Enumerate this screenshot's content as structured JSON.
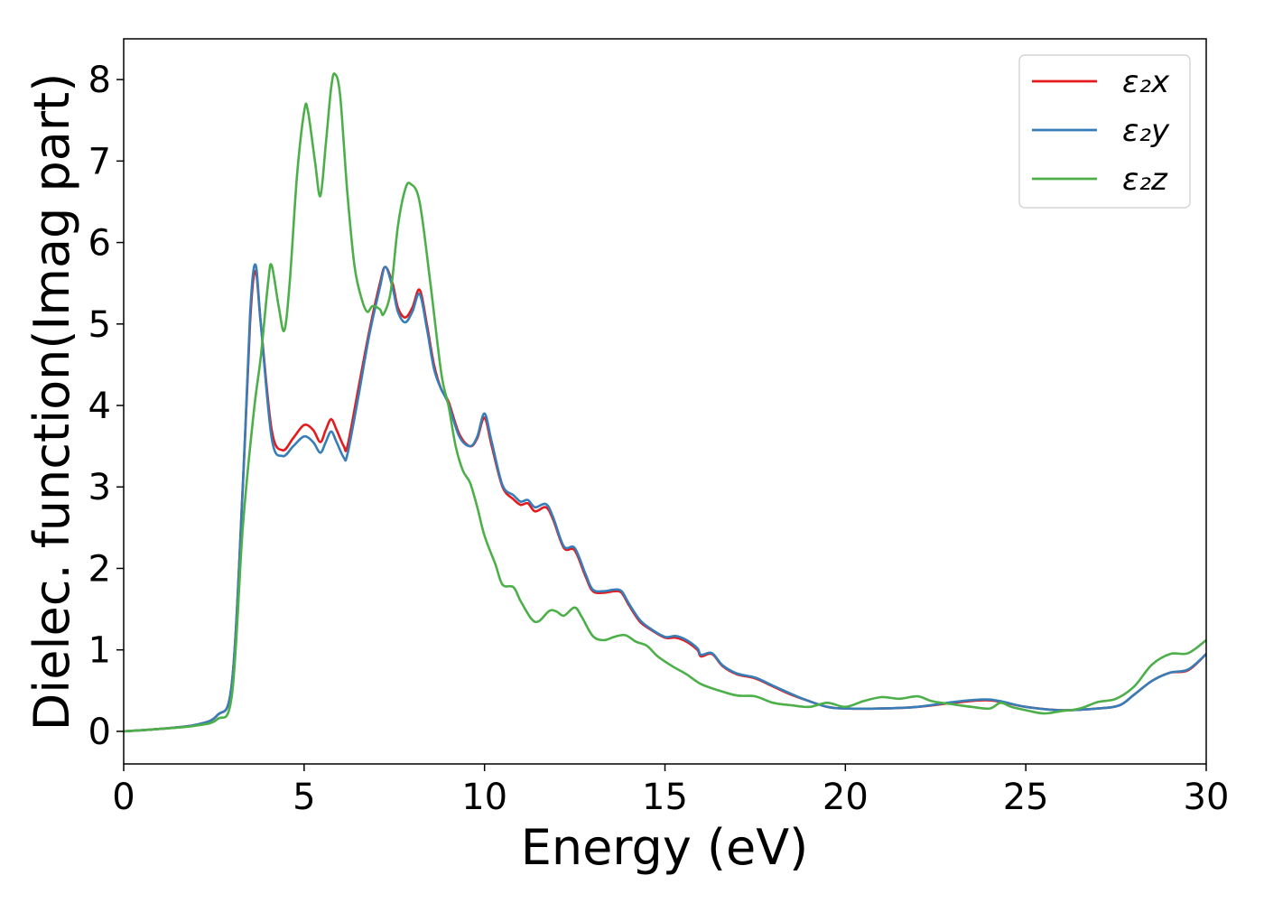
{
  "chart_data": {
    "type": "line",
    "xlabel": "Energy (eV)",
    "ylabel": "Dielec. function(Imag part)",
    "xlim": [
      0,
      30
    ],
    "ylim": [
      -0.4,
      8.5
    ],
    "xticks": [
      0,
      5,
      10,
      15,
      20,
      25,
      30
    ],
    "yticks": [
      0,
      1,
      2,
      3,
      4,
      5,
      6,
      7,
      8
    ],
    "xtick_labels": [
      "0",
      "5",
      "10",
      "15",
      "20",
      "25",
      "30"
    ],
    "ytick_labels": [
      "0",
      "1",
      "2",
      "3",
      "4",
      "5",
      "6",
      "7",
      "8"
    ],
    "grid": false,
    "legend_position": "top-right",
    "series": [
      {
        "name": "ε₂x",
        "color": "#e41a1c",
        "points": [
          [
            0,
            0
          ],
          [
            1,
            0.03
          ],
          [
            2,
            0.08
          ],
          [
            2.6,
            0.2
          ],
          [
            3,
            0.6
          ],
          [
            3.3,
            3.0
          ],
          [
            3.5,
            5.0
          ],
          [
            3.65,
            5.65
          ],
          [
            3.8,
            5.0
          ],
          [
            4.1,
            3.7
          ],
          [
            4.4,
            3.45
          ],
          [
            4.7,
            3.6
          ],
          [
            5.0,
            3.76
          ],
          [
            5.25,
            3.7
          ],
          [
            5.45,
            3.55
          ],
          [
            5.6,
            3.7
          ],
          [
            5.75,
            3.83
          ],
          [
            5.9,
            3.7
          ],
          [
            6.1,
            3.5
          ],
          [
            6.2,
            3.5
          ],
          [
            6.5,
            4.2
          ],
          [
            6.8,
            4.9
          ],
          [
            7.1,
            5.5
          ],
          [
            7.25,
            5.7
          ],
          [
            7.45,
            5.5
          ],
          [
            7.6,
            5.2
          ],
          [
            7.8,
            5.08
          ],
          [
            8.0,
            5.2
          ],
          [
            8.2,
            5.42
          ],
          [
            8.4,
            5.0
          ],
          [
            8.6,
            4.5
          ],
          [
            8.8,
            4.2
          ],
          [
            9.0,
            4.05
          ],
          [
            9.3,
            3.65
          ],
          [
            9.6,
            3.5
          ],
          [
            9.8,
            3.6
          ],
          [
            10.0,
            3.85
          ],
          [
            10.2,
            3.5
          ],
          [
            10.5,
            3.0
          ],
          [
            10.8,
            2.85
          ],
          [
            11.0,
            2.78
          ],
          [
            11.2,
            2.8
          ],
          [
            11.4,
            2.7
          ],
          [
            11.7,
            2.75
          ],
          [
            11.9,
            2.6
          ],
          [
            12.2,
            2.25
          ],
          [
            12.5,
            2.22
          ],
          [
            12.8,
            1.9
          ],
          [
            13.0,
            1.72
          ],
          [
            13.3,
            1.7
          ],
          [
            13.6,
            1.72
          ],
          [
            13.8,
            1.7
          ],
          [
            14.0,
            1.55
          ],
          [
            14.3,
            1.35
          ],
          [
            14.6,
            1.25
          ],
          [
            15.0,
            1.15
          ],
          [
            15.3,
            1.15
          ],
          [
            15.6,
            1.1
          ],
          [
            15.9,
            1.0
          ],
          [
            16.0,
            0.92
          ],
          [
            16.3,
            0.95
          ],
          [
            16.6,
            0.8
          ],
          [
            17.0,
            0.7
          ],
          [
            17.5,
            0.65
          ],
          [
            18.0,
            0.55
          ],
          [
            18.5,
            0.45
          ],
          [
            19.0,
            0.37
          ],
          [
            19.5,
            0.3
          ],
          [
            20.0,
            0.28
          ],
          [
            21.0,
            0.28
          ],
          [
            22.0,
            0.3
          ],
          [
            23.0,
            0.35
          ],
          [
            24.0,
            0.38
          ],
          [
            25.0,
            0.3
          ],
          [
            26.0,
            0.26
          ],
          [
            27.0,
            0.28
          ],
          [
            27.6,
            0.32
          ],
          [
            28.0,
            0.45
          ],
          [
            28.5,
            0.62
          ],
          [
            29.0,
            0.72
          ],
          [
            29.5,
            0.75
          ],
          [
            30.0,
            0.95
          ]
        ]
      },
      {
        "name": "ε₂y",
        "color": "#377eb8",
        "points": [
          [
            0,
            0
          ],
          [
            1,
            0.03
          ],
          [
            2,
            0.08
          ],
          [
            2.6,
            0.2
          ],
          [
            3,
            0.6
          ],
          [
            3.3,
            3.0
          ],
          [
            3.5,
            5.1
          ],
          [
            3.65,
            5.73
          ],
          [
            3.8,
            5.0
          ],
          [
            4.1,
            3.6
          ],
          [
            4.4,
            3.38
          ],
          [
            4.7,
            3.5
          ],
          [
            5.0,
            3.62
          ],
          [
            5.25,
            3.55
          ],
          [
            5.45,
            3.42
          ],
          [
            5.6,
            3.55
          ],
          [
            5.75,
            3.68
          ],
          [
            5.9,
            3.55
          ],
          [
            6.1,
            3.36
          ],
          [
            6.2,
            3.4
          ],
          [
            6.5,
            4.1
          ],
          [
            6.8,
            4.85
          ],
          [
            7.1,
            5.45
          ],
          [
            7.25,
            5.7
          ],
          [
            7.45,
            5.45
          ],
          [
            7.6,
            5.15
          ],
          [
            7.8,
            5.02
          ],
          [
            8.0,
            5.15
          ],
          [
            8.2,
            5.37
          ],
          [
            8.4,
            4.95
          ],
          [
            8.6,
            4.45
          ],
          [
            8.8,
            4.2
          ],
          [
            9.0,
            4.02
          ],
          [
            9.3,
            3.62
          ],
          [
            9.6,
            3.5
          ],
          [
            9.8,
            3.62
          ],
          [
            10.0,
            3.9
          ],
          [
            10.2,
            3.55
          ],
          [
            10.5,
            3.02
          ],
          [
            10.8,
            2.9
          ],
          [
            11.0,
            2.82
          ],
          [
            11.2,
            2.84
          ],
          [
            11.4,
            2.75
          ],
          [
            11.7,
            2.79
          ],
          [
            11.9,
            2.63
          ],
          [
            12.2,
            2.27
          ],
          [
            12.5,
            2.25
          ],
          [
            12.8,
            1.93
          ],
          [
            13.0,
            1.74
          ],
          [
            13.3,
            1.72
          ],
          [
            13.6,
            1.74
          ],
          [
            13.8,
            1.72
          ],
          [
            14.0,
            1.57
          ],
          [
            14.3,
            1.37
          ],
          [
            14.6,
            1.26
          ],
          [
            15.0,
            1.16
          ],
          [
            15.3,
            1.17
          ],
          [
            15.6,
            1.12
          ],
          [
            15.9,
            1.02
          ],
          [
            16.0,
            0.94
          ],
          [
            16.3,
            0.96
          ],
          [
            16.6,
            0.81
          ],
          [
            17.0,
            0.71
          ],
          [
            17.5,
            0.66
          ],
          [
            18.0,
            0.56
          ],
          [
            18.5,
            0.46
          ],
          [
            19.0,
            0.37
          ],
          [
            19.5,
            0.3
          ],
          [
            20.0,
            0.28
          ],
          [
            21.0,
            0.28
          ],
          [
            22.0,
            0.3
          ],
          [
            23.0,
            0.36
          ],
          [
            24.0,
            0.39
          ],
          [
            25.0,
            0.3
          ],
          [
            26.0,
            0.26
          ],
          [
            27.0,
            0.28
          ],
          [
            27.6,
            0.32
          ],
          [
            28.0,
            0.45
          ],
          [
            28.5,
            0.62
          ],
          [
            29.0,
            0.72
          ],
          [
            29.5,
            0.76
          ],
          [
            30.0,
            0.95
          ]
        ]
      },
      {
        "name": "ε₂z",
        "color": "#4daf4a",
        "points": [
          [
            0,
            0
          ],
          [
            1,
            0.03
          ],
          [
            2,
            0.07
          ],
          [
            2.6,
            0.15
          ],
          [
            3,
            0.45
          ],
          [
            3.3,
            2.5
          ],
          [
            3.6,
            3.9
          ],
          [
            3.8,
            4.6
          ],
          [
            4.0,
            5.5
          ],
          [
            4.1,
            5.72
          ],
          [
            4.3,
            5.2
          ],
          [
            4.45,
            4.92
          ],
          [
            4.6,
            5.5
          ],
          [
            4.8,
            6.8
          ],
          [
            5.0,
            7.6
          ],
          [
            5.1,
            7.63
          ],
          [
            5.3,
            7.0
          ],
          [
            5.45,
            6.57
          ],
          [
            5.6,
            7.2
          ],
          [
            5.75,
            7.9
          ],
          [
            5.85,
            8.07
          ],
          [
            6.0,
            7.8
          ],
          [
            6.2,
            6.6
          ],
          [
            6.4,
            5.7
          ],
          [
            6.6,
            5.3
          ],
          [
            6.75,
            5.15
          ],
          [
            6.9,
            5.22
          ],
          [
            7.1,
            5.18
          ],
          [
            7.2,
            5.12
          ],
          [
            7.4,
            5.4
          ],
          [
            7.6,
            6.2
          ],
          [
            7.8,
            6.65
          ],
          [
            7.95,
            6.72
          ],
          [
            8.2,
            6.5
          ],
          [
            8.5,
            5.5
          ],
          [
            8.8,
            4.4
          ],
          [
            9.0,
            4.0
          ],
          [
            9.2,
            3.5
          ],
          [
            9.4,
            3.2
          ],
          [
            9.6,
            3.05
          ],
          [
            9.8,
            2.75
          ],
          [
            10.0,
            2.4
          ],
          [
            10.3,
            2.05
          ],
          [
            10.5,
            1.8
          ],
          [
            10.8,
            1.77
          ],
          [
            11.0,
            1.6
          ],
          [
            11.3,
            1.38
          ],
          [
            11.5,
            1.35
          ],
          [
            11.8,
            1.48
          ],
          [
            12.0,
            1.47
          ],
          [
            12.2,
            1.42
          ],
          [
            12.5,
            1.52
          ],
          [
            12.7,
            1.4
          ],
          [
            13.0,
            1.17
          ],
          [
            13.3,
            1.12
          ],
          [
            13.6,
            1.16
          ],
          [
            13.9,
            1.18
          ],
          [
            14.2,
            1.1
          ],
          [
            14.5,
            1.05
          ],
          [
            14.8,
            0.92
          ],
          [
            15.2,
            0.8
          ],
          [
            15.6,
            0.7
          ],
          [
            16.0,
            0.58
          ],
          [
            16.5,
            0.5
          ],
          [
            17.0,
            0.44
          ],
          [
            17.5,
            0.43
          ],
          [
            18.0,
            0.35
          ],
          [
            18.5,
            0.32
          ],
          [
            19.0,
            0.3
          ],
          [
            19.5,
            0.35
          ],
          [
            20.0,
            0.3
          ],
          [
            20.5,
            0.37
          ],
          [
            21.0,
            0.42
          ],
          [
            21.5,
            0.4
          ],
          [
            22.0,
            0.43
          ],
          [
            22.4,
            0.37
          ],
          [
            23.0,
            0.33
          ],
          [
            23.5,
            0.3
          ],
          [
            24.0,
            0.28
          ],
          [
            24.3,
            0.35
          ],
          [
            24.6,
            0.3
          ],
          [
            25.0,
            0.26
          ],
          [
            25.5,
            0.22
          ],
          [
            26.0,
            0.25
          ],
          [
            26.5,
            0.28
          ],
          [
            27.0,
            0.36
          ],
          [
            27.5,
            0.4
          ],
          [
            28.0,
            0.55
          ],
          [
            28.5,
            0.82
          ],
          [
            29.0,
            0.95
          ],
          [
            29.5,
            0.96
          ],
          [
            30.0,
            1.12
          ]
        ]
      }
    ]
  }
}
